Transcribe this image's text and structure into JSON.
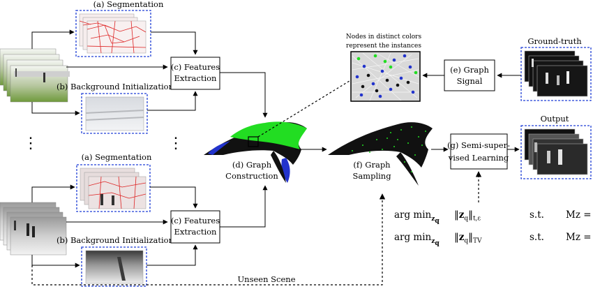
{
  "labels": {
    "segmentation_top": "(a) Segmentation",
    "background_top": "(b) Background Initialization",
    "segmentation_bottom": "(a) Segmentation",
    "background_bottom": "(b) Background Initialization",
    "features_top_1": "(c) Features",
    "features_top_2": "Extraction",
    "features_bottom_1": "(c) Features",
    "features_bottom_2": "Extraction",
    "graph_construction_1": "(d) Graph",
    "graph_construction_2": "Construction",
    "graph_signal_1": "(e) Graph",
    "graph_signal_2": "Signal",
    "graph_sampling_1": "(f) Graph",
    "graph_sampling_2": "Sampling",
    "ssl_1": "(g) Semi-super-",
    "ssl_2": "vised Learning",
    "nodes_note_1": "Nodes in distinct colors",
    "nodes_note_2": "represent the instances",
    "ground_truth": "Ground-truth",
    "output": "Output",
    "unseen_scene": "Unseen Scene",
    "ellipsis": "⋮"
  },
  "equations": [
    {
      "op": "arg min",
      "var": "z",
      "norm_sub": "t,ε",
      "norm_var": "z",
      "st": "s.t.",
      "constraint": "Mz = y(S)"
    },
    {
      "op": "arg min",
      "var": "z",
      "norm_sub": "TV",
      "norm_var": "z",
      "st": "s.t.",
      "constraint": "Mz = y(S)"
    }
  ],
  "colors": {
    "dashed_frame": "#1f3fd6",
    "foreground_nodes": "#22dd22",
    "background_nodes": "#111111",
    "blue_nodes": "#2233cc",
    "segment_lines": "#dd2222"
  }
}
